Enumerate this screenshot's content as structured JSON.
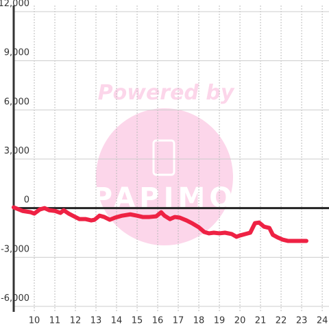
{
  "chart_data": {
    "type": "line",
    "watermark": {
      "line1": "Powered by",
      "line2": "PAPIMO"
    },
    "x": [
      9.0,
      9.43,
      9.83,
      10.0,
      10.27,
      10.5,
      10.73,
      11.0,
      11.27,
      11.43,
      11.67,
      11.93,
      12.2,
      12.5,
      12.77,
      12.93,
      13.17,
      13.4,
      13.67,
      13.93,
      14.27,
      14.67,
      15.0,
      15.27,
      15.6,
      15.93,
      16.17,
      16.33,
      16.6,
      16.83,
      17.07,
      17.4,
      17.67,
      18.0,
      18.27,
      18.5,
      18.73,
      19.0,
      19.27,
      19.6,
      19.83,
      20.0,
      20.27,
      20.5,
      20.73,
      20.93,
      21.17,
      21.43,
      21.6,
      21.83,
      22.07,
      22.33,
      23.23
    ],
    "series": [
      {
        "color": "#ee2244",
        "values": [
          50,
          -170,
          -250,
          -330,
          -80,
          0,
          -130,
          -170,
          -290,
          -130,
          -330,
          -500,
          -670,
          -670,
          -750,
          -710,
          -460,
          -540,
          -710,
          -580,
          -460,
          -380,
          -460,
          -540,
          -540,
          -500,
          -250,
          -460,
          -670,
          -540,
          -580,
          -750,
          -920,
          -1170,
          -1460,
          -1540,
          -1500,
          -1540,
          -1500,
          -1580,
          -1750,
          -1670,
          -1580,
          -1500,
          -920,
          -880,
          -1130,
          -1210,
          -1630,
          -1790,
          -1920,
          -2000,
          -2000
        ]
      }
    ],
    "xlim": [
      9,
      24.33
    ],
    "xticks": [
      10,
      11,
      12,
      13,
      14,
      15,
      16,
      17,
      18,
      19,
      20,
      21,
      22,
      23,
      24
    ],
    "ylim": [
      -6000,
      12000
    ],
    "yticks": [
      {
        "value": -6000,
        "label": "-6,000"
      },
      {
        "value": -3000,
        "label": "-3,000"
      },
      0,
      {
        "value": 3000,
        "label": "3,000"
      },
      {
        "value": 6000,
        "label": "6,000"
      },
      {
        "value": 9000,
        "label": "9,000"
      },
      {
        "value": 12000,
        "label": "12,000"
      }
    ],
    "grid": true
  }
}
